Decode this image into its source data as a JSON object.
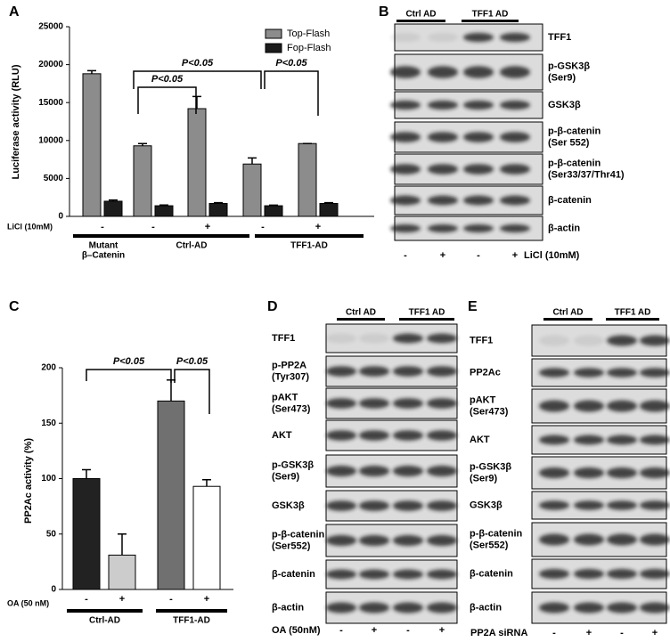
{
  "panels": [
    "A",
    "B",
    "C",
    "D",
    "E"
  ],
  "chart_data": [
    {
      "type": "bar",
      "ylabel": "Luciferase activity (RLU)",
      "categories": [
        "-",
        "-",
        "+",
        "-",
        "+"
      ],
      "row_label": "LiCl (10mM)",
      "groups": [
        [
          "Mutant",
          "β–Catenin"
        ],
        [
          "Ctrl-AD"
        ],
        [
          "TFF1-AD"
        ]
      ],
      "series": [
        {
          "name": "Top-Flash",
          "color": "#8c8c8c",
          "values": [
            18800,
            9300,
            14200,
            6900,
            9600
          ],
          "errors": [
            400,
            300,
            1600,
            800,
            0
          ]
        },
        {
          "name": "Fop-Flash",
          "color": "#1c1c1c",
          "values": [
            2000,
            1400,
            1700,
            1400,
            1700
          ],
          "errors": [
            150,
            100,
            100,
            80,
            100
          ]
        }
      ],
      "ylim": [
        0,
        25000
      ],
      "yticks": [
        0,
        5000,
        10000,
        15000,
        20000,
        25000
      ],
      "annotations": [
        "P<0.05",
        "P<0.05",
        "P<0.05"
      ]
    },
    {
      "type": "bar",
      "ylabel": "PP2Ac activity (%)",
      "categories": [
        "-",
        "+",
        "-",
        "+"
      ],
      "row_label": "OA (50 nM)",
      "groups": [
        [
          "Ctrl-AD"
        ],
        [
          "TFF1-AD"
        ]
      ],
      "values": [
        100,
        31,
        170,
        93
      ],
      "errors": [
        8,
        19,
        19,
        6
      ],
      "colors": [
        "#222222",
        "#cccccc",
        "#707070",
        "#ffffff"
      ],
      "ylim": [
        0,
        200
      ],
      "yticks": [
        0,
        50,
        100,
        150,
        200
      ],
      "annotations": [
        "P<0.05",
        "P<0.05"
      ]
    }
  ],
  "blots": [
    {
      "header": [
        "Ctrl AD",
        "TFF1 AD"
      ],
      "rows": [
        [
          "TFF1"
        ],
        [
          "p-GSK3β",
          "(Ser9)"
        ],
        [
          "GSK3β"
        ],
        [
          "p-β-catenin",
          "(Ser 552)"
        ],
        [
          "p-β-catenin",
          "(Ser33/37/Thr41)"
        ],
        [
          "β-catenin"
        ],
        [
          "β-actin"
        ]
      ],
      "lanes": [
        "-",
        "+",
        "-",
        "+"
      ],
      "treatment": "LiCl (10mM)"
    },
    {
      "header": [
        "Ctrl AD",
        "TFF1 AD"
      ],
      "rows": [
        [
          "TFF1"
        ],
        [
          "p-PP2A",
          "(Tyr307)"
        ],
        [
          "pAKT",
          "(Ser473)"
        ],
        [
          "AKT"
        ],
        [
          "p-GSK3β",
          "(Ser9)"
        ],
        [
          "GSK3β"
        ],
        [
          "p-β-catenin",
          "(Ser552)"
        ],
        [
          "β-catenin"
        ],
        [
          "β-actin"
        ]
      ],
      "lanes": [
        "-",
        "+",
        "-",
        "+"
      ],
      "treatment": "OA (50nM)"
    },
    {
      "header": [
        "Ctrl AD",
        "TFF1 AD"
      ],
      "rows": [
        [
          "TFF1"
        ],
        [
          "PP2Ac"
        ],
        [
          "pAKT",
          "(Ser473)"
        ],
        [
          "AKT"
        ],
        [
          "p-GSK3β",
          "(Ser9)"
        ],
        [
          "GSK3β"
        ],
        [
          "p-β-catenin",
          "(Ser552)"
        ],
        [
          "β-catenin"
        ],
        [
          "β-actin"
        ]
      ],
      "lanes": [
        "-",
        "+",
        "-",
        "+"
      ],
      "treatment": "PP2A siRNA"
    }
  ]
}
